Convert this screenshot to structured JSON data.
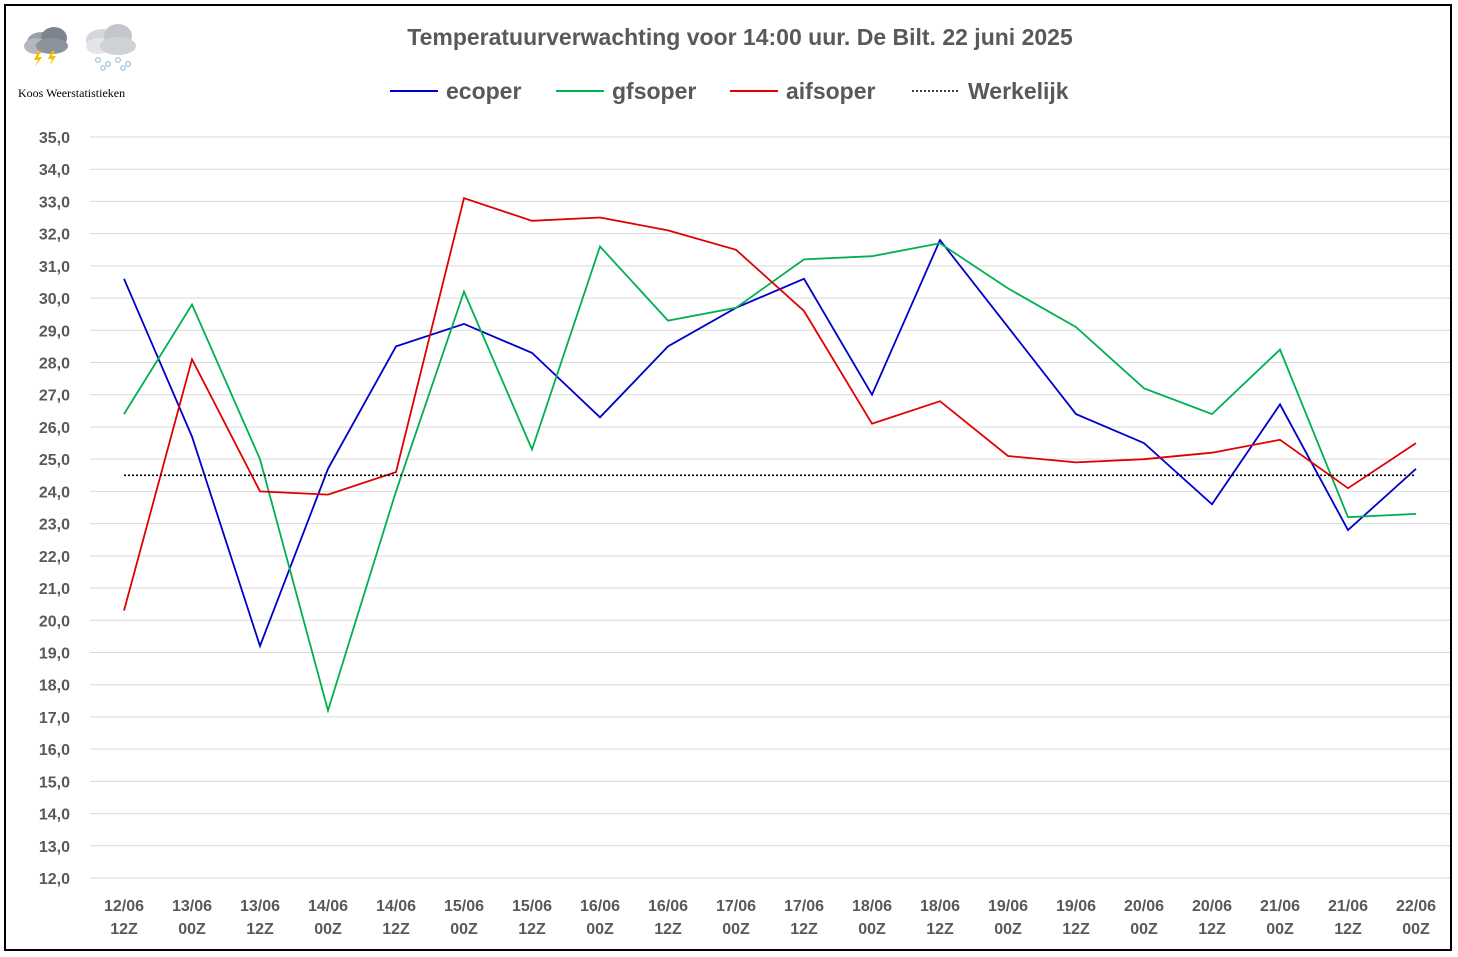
{
  "branding": {
    "logo_text": "Koos Weerstatistieken",
    "icons": [
      "thunderstorm-cloud-icon",
      "snow-cloud-icon"
    ]
  },
  "chart_data": {
    "type": "line",
    "title": "Temperatuurverwachting voor 14:00 uur. De Bilt. 22 juni 2025",
    "xlabel": "",
    "ylabel": "",
    "ylim": [
      12,
      35
    ],
    "y_ticks": [
      "12,0",
      "13,0",
      "14,0",
      "15,0",
      "16,0",
      "17,0",
      "18,0",
      "19,0",
      "20,0",
      "21,0",
      "22,0",
      "23,0",
      "24,0",
      "25,0",
      "26,0",
      "27,0",
      "28,0",
      "29,0",
      "30,0",
      "31,0",
      "32,0",
      "33,0",
      "34,0",
      "35,0"
    ],
    "grid": true,
    "legend_position": "top",
    "categories": [
      [
        "12/06",
        "12Z"
      ],
      [
        "13/06",
        "00Z"
      ],
      [
        "13/06",
        "12Z"
      ],
      [
        "14/06",
        "00Z"
      ],
      [
        "14/06",
        "12Z"
      ],
      [
        "15/06",
        "00Z"
      ],
      [
        "15/06",
        "12Z"
      ],
      [
        "16/06",
        "00Z"
      ],
      [
        "16/06",
        "12Z"
      ],
      [
        "17/06",
        "00Z"
      ],
      [
        "17/06",
        "12Z"
      ],
      [
        "18/06",
        "00Z"
      ],
      [
        "18/06",
        "12Z"
      ],
      [
        "19/06",
        "00Z"
      ],
      [
        "19/06",
        "12Z"
      ],
      [
        "20/06",
        "00Z"
      ],
      [
        "20/06",
        "12Z"
      ],
      [
        "21/06",
        "00Z"
      ],
      [
        "21/06",
        "12Z"
      ],
      [
        "22/06",
        "00Z"
      ]
    ],
    "series": [
      {
        "name": "ecoper",
        "color": "#0000CC",
        "style": "solid",
        "values": [
          30.6,
          25.7,
          19.2,
          24.7,
          28.5,
          29.2,
          28.3,
          26.3,
          28.5,
          29.7,
          30.6,
          27.0,
          31.8,
          29.1,
          26.4,
          25.5,
          23.6,
          26.7,
          22.8,
          24.7
        ]
      },
      {
        "name": "gfsoper",
        "color": "#00B050",
        "style": "solid",
        "values": [
          26.4,
          29.8,
          25.0,
          17.2,
          24.0,
          30.2,
          25.3,
          31.6,
          29.3,
          29.7,
          31.2,
          31.3,
          31.7,
          30.3,
          29.1,
          27.2,
          26.4,
          28.4,
          23.2,
          23.3
        ]
      },
      {
        "name": "aifsoper",
        "color": "#E00000",
        "style": "solid",
        "values": [
          20.3,
          28.1,
          24.0,
          23.9,
          24.6,
          33.1,
          32.4,
          32.5,
          32.1,
          31.5,
          29.6,
          26.1,
          26.8,
          25.1,
          24.9,
          25.0,
          25.2,
          25.6,
          24.1,
          25.5
        ]
      },
      {
        "name": "Werkelijk",
        "color": "#000000",
        "style": "dotted",
        "values": [
          24.5,
          24.5,
          24.5,
          24.5,
          24.5,
          24.5,
          24.5,
          24.5,
          24.5,
          24.5,
          24.5,
          24.5,
          24.5,
          24.5,
          24.5,
          24.5,
          24.5,
          24.5,
          24.5,
          24.5
        ]
      }
    ]
  }
}
